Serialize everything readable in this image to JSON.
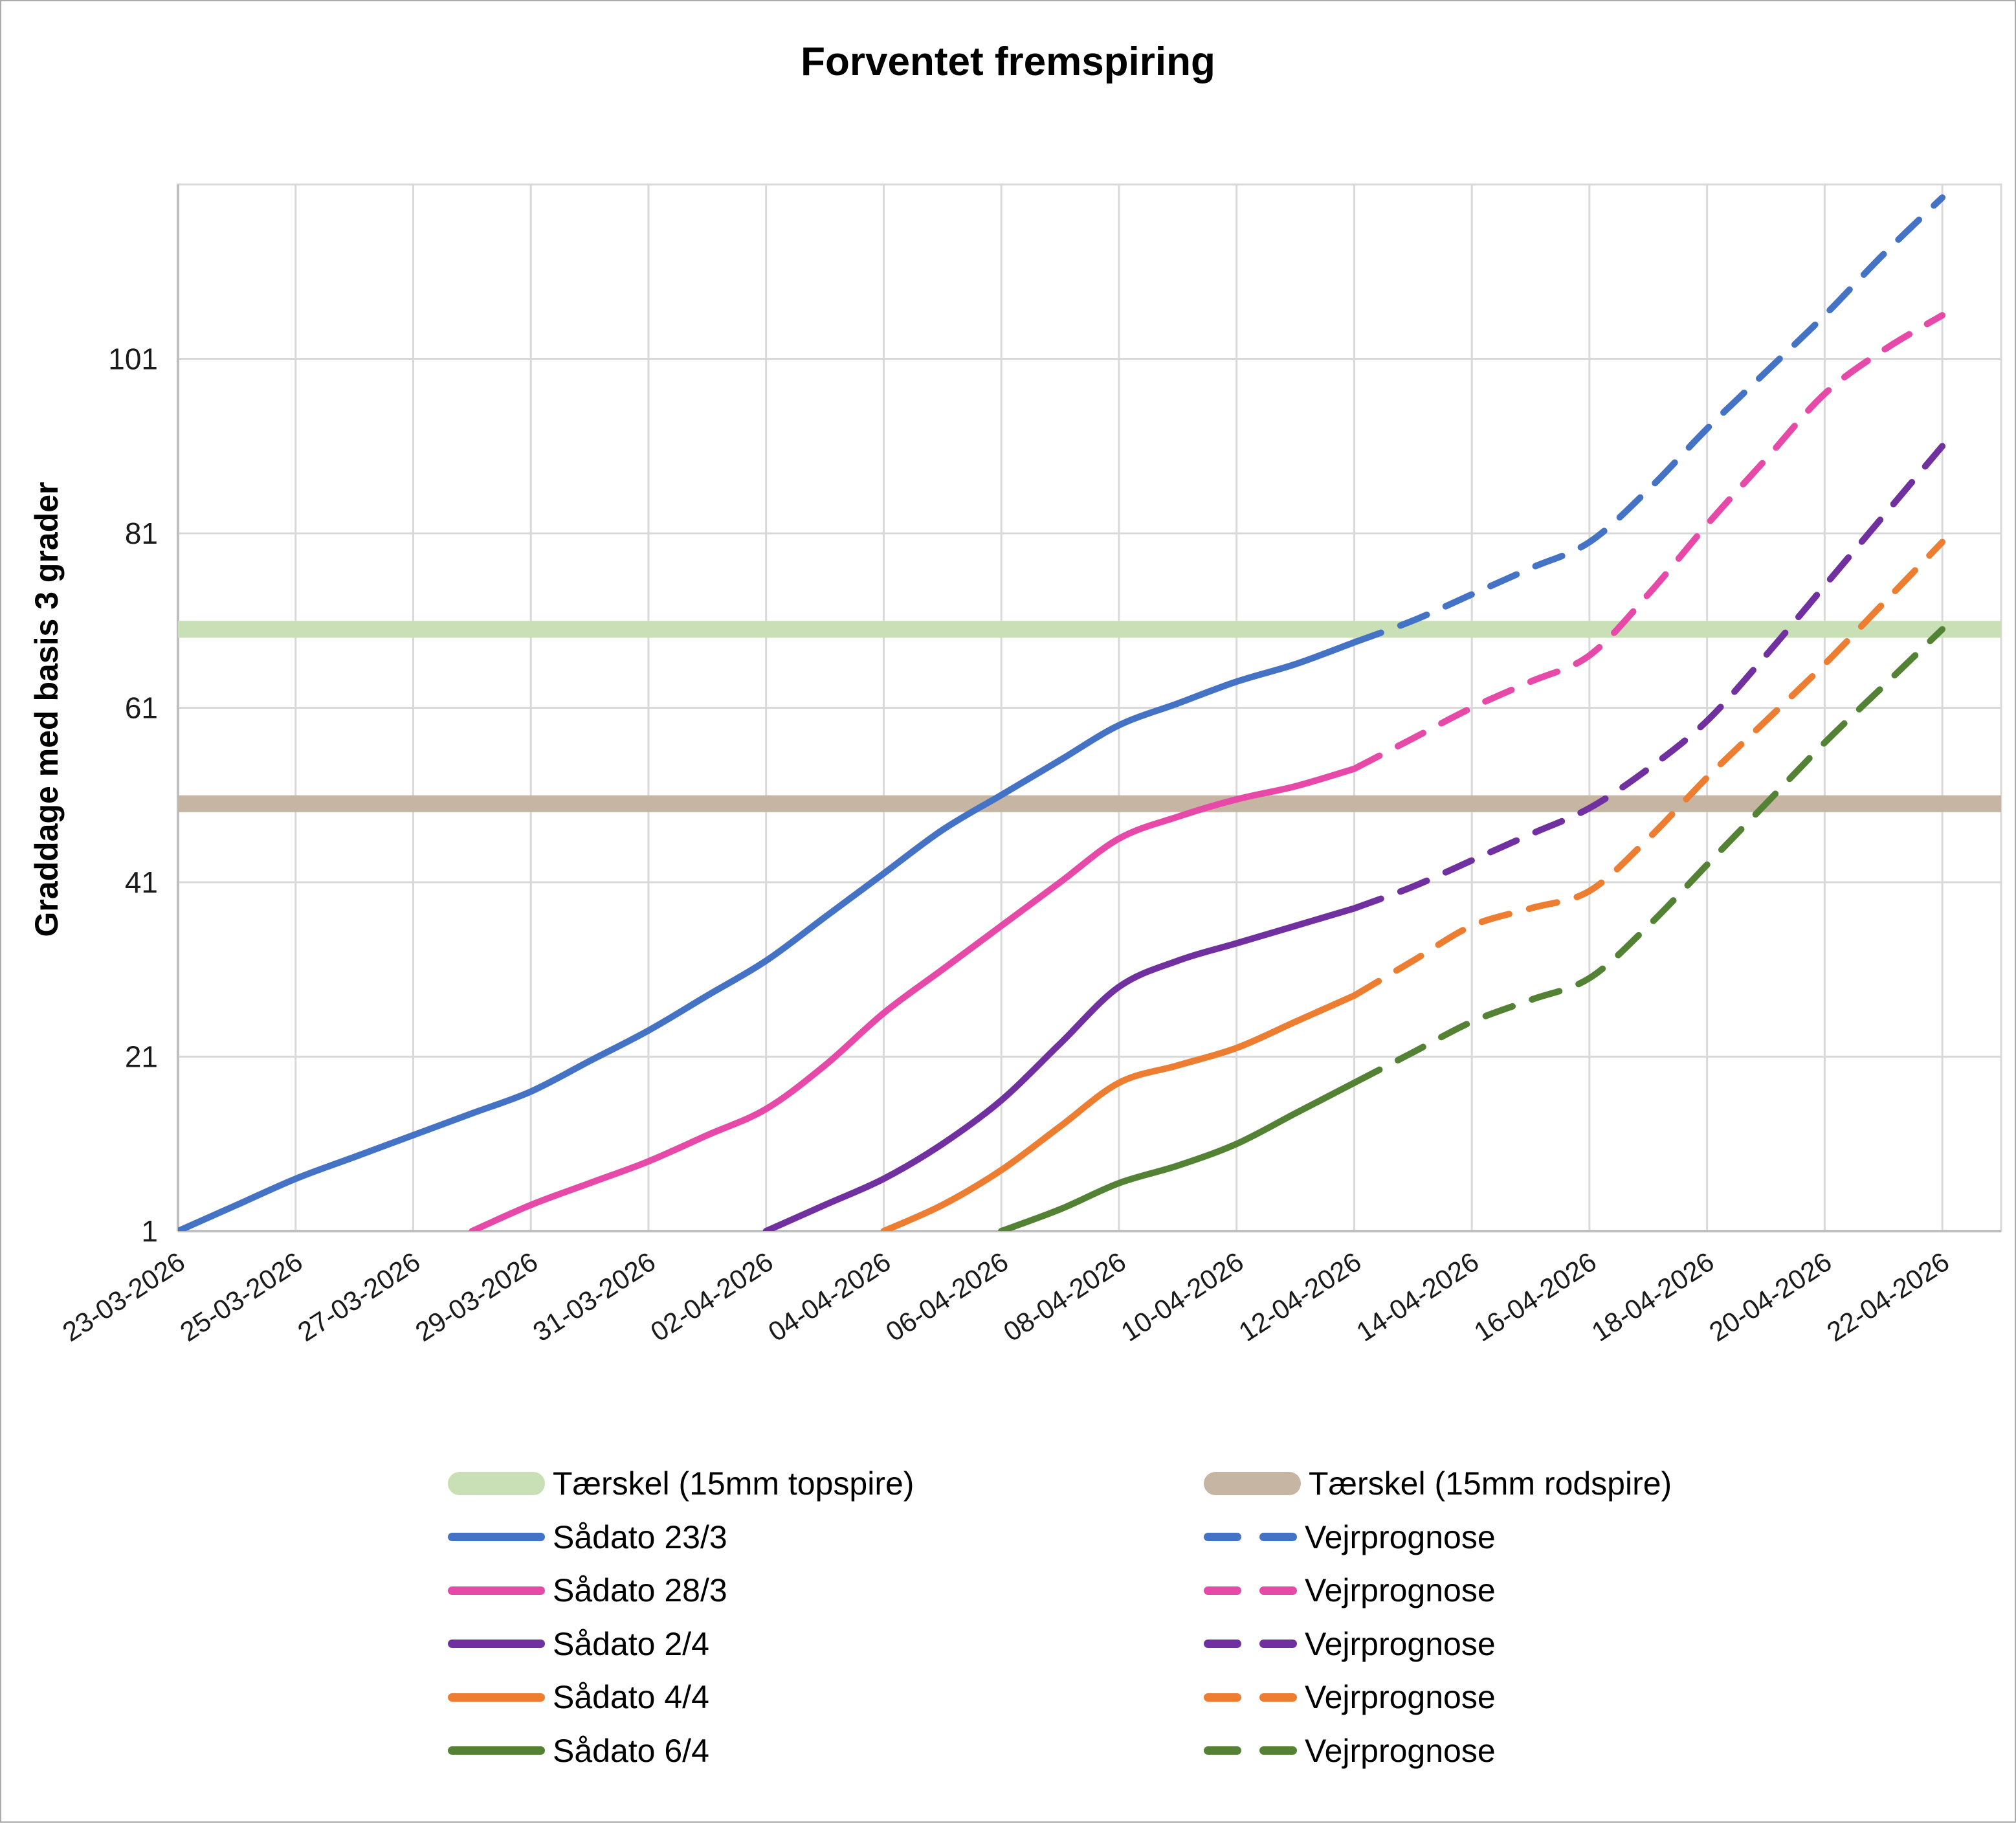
{
  "page": {
    "title": "Forventet fremspiring"
  },
  "chart_data": {
    "type": "line",
    "title": "Forventet fremspiring",
    "ylabel": "Graddage med basis 3 grader",
    "xlabel": "",
    "x_tick_labels": [
      "23-03-2026",
      "25-03-2026",
      "27-03-2026",
      "29-03-2026",
      "31-03-2026",
      "02-04-2026",
      "04-04-2026",
      "06-04-2026",
      "08-04-2026",
      "10-04-2026",
      "12-04-2026",
      "14-04-2026",
      "16-04-2026",
      "18-04-2026",
      "20-04-2026",
      "22-04-2026"
    ],
    "x_tick_days": [
      0,
      2,
      4,
      6,
      8,
      10,
      12,
      14,
      16,
      18,
      20,
      22,
      24,
      26,
      28,
      30
    ],
    "x_day_span": 31,
    "ylim": [
      1,
      121
    ],
    "yticks": [
      1,
      21,
      41,
      61,
      81,
      101
    ],
    "grid": true,
    "legend_position": "bottom",
    "grid_color": "#d9d9d9",
    "axis_color": "#bfbfbf",
    "text_color": "#1a1a1a",
    "thresholds": [
      {
        "label": "Tærskel (15mm topspire)",
        "value": 70,
        "color": "#c9dfb6"
      },
      {
        "label": "Tærskel (15mm rodspire)",
        "value": 50,
        "color": "#c6b5a3"
      }
    ],
    "forecast_label": "Vejrprognose",
    "series": [
      {
        "name": "Sådato 23/3",
        "forecast_name": "Vejrprognose",
        "color": "#4472c4",
        "solid": [
          [
            0,
            1
          ],
          [
            1,
            4
          ],
          [
            2,
            7
          ],
          [
            3,
            9.5
          ],
          [
            4,
            12
          ],
          [
            5,
            14.5
          ],
          [
            6,
            17
          ],
          [
            7,
            20.5
          ],
          [
            8,
            24
          ],
          [
            9,
            28
          ],
          [
            10,
            32
          ],
          [
            11,
            37
          ],
          [
            12,
            42
          ],
          [
            13,
            47
          ],
          [
            14,
            51
          ],
          [
            15,
            55
          ],
          [
            16,
            59
          ],
          [
            17,
            61.5
          ],
          [
            18,
            64
          ],
          [
            19,
            66
          ],
          [
            20,
            68.5
          ]
        ],
        "dashed": [
          [
            20,
            68.5
          ],
          [
            21,
            71
          ],
          [
            22,
            74
          ],
          [
            23,
            77
          ],
          [
            24,
            80
          ],
          [
            25,
            86
          ],
          [
            26,
            93
          ],
          [
            27,
            99.5
          ],
          [
            28,
            106
          ],
          [
            29,
            113
          ],
          [
            30,
            119.5
          ]
        ]
      },
      {
        "name": "Sådato 28/3",
        "forecast_name": "Vejrprognose",
        "color": "#e649a8",
        "solid": [
          [
            5,
            1
          ],
          [
            6,
            4
          ],
          [
            7,
            6.5
          ],
          [
            8,
            9
          ],
          [
            9,
            12
          ],
          [
            10,
            15
          ],
          [
            11,
            20
          ],
          [
            12,
            26
          ],
          [
            13,
            31
          ],
          [
            14,
            36
          ],
          [
            15,
            41
          ],
          [
            16,
            46
          ],
          [
            17,
            48.5
          ],
          [
            18,
            50.5
          ],
          [
            19,
            52
          ],
          [
            20,
            54
          ]
        ],
        "dashed": [
          [
            20,
            54
          ],
          [
            21,
            57.5
          ],
          [
            22,
            61
          ],
          [
            23,
            64
          ],
          [
            24,
            67
          ],
          [
            25,
            74
          ],
          [
            26,
            82
          ],
          [
            27,
            89.5
          ],
          [
            28,
            97
          ],
          [
            29,
            102
          ],
          [
            30,
            106
          ]
        ]
      },
      {
        "name": "Sådato 2/4",
        "forecast_name": "Vejrprognose",
        "color": "#7030a0",
        "solid": [
          [
            10,
            1
          ],
          [
            11,
            4
          ],
          [
            12,
            7
          ],
          [
            13,
            11
          ],
          [
            14,
            16
          ],
          [
            15,
            22.5
          ],
          [
            16,
            29
          ],
          [
            17,
            32
          ],
          [
            18,
            34
          ],
          [
            19,
            36
          ],
          [
            20,
            38
          ]
        ],
        "dashed": [
          [
            20,
            38
          ],
          [
            21,
            40.5
          ],
          [
            22,
            43.5
          ],
          [
            23,
            46.5
          ],
          [
            24,
            49.5
          ],
          [
            25,
            54
          ],
          [
            26,
            59.5
          ],
          [
            27,
            67
          ],
          [
            28,
            75
          ],
          [
            29,
            83
          ],
          [
            30,
            91
          ]
        ]
      },
      {
        "name": "Sådato 4/4",
        "forecast_name": "Vejrprognose",
        "color": "#ed7d31",
        "solid": [
          [
            12,
            1
          ],
          [
            13,
            4
          ],
          [
            14,
            8
          ],
          [
            15,
            13
          ],
          [
            16,
            18
          ],
          [
            17,
            20
          ],
          [
            18,
            22
          ],
          [
            19,
            25
          ],
          [
            20,
            28
          ]
        ],
        "dashed": [
          [
            20,
            28
          ],
          [
            21,
            32
          ],
          [
            22,
            36
          ],
          [
            23,
            38
          ],
          [
            24,
            40
          ],
          [
            25,
            46
          ],
          [
            26,
            53
          ],
          [
            27,
            59.5
          ],
          [
            28,
            66
          ],
          [
            29,
            73
          ],
          [
            30,
            80
          ]
        ]
      },
      {
        "name": "Sådato 6/4",
        "forecast_name": "Vejrprognose",
        "color": "#548235",
        "solid": [
          [
            14,
            1
          ],
          [
            15,
            3.5
          ],
          [
            16,
            6.5
          ],
          [
            17,
            8.5
          ],
          [
            18,
            11
          ],
          [
            19,
            14.5
          ],
          [
            20,
            18
          ]
        ],
        "dashed": [
          [
            20,
            18
          ],
          [
            21,
            21.5
          ],
          [
            22,
            25
          ],
          [
            23,
            27.5
          ],
          [
            24,
            30
          ],
          [
            25,
            36
          ],
          [
            26,
            43
          ],
          [
            27,
            50
          ],
          [
            28,
            57
          ],
          [
            29,
            63.5
          ],
          [
            30,
            70
          ]
        ]
      }
    ]
  }
}
